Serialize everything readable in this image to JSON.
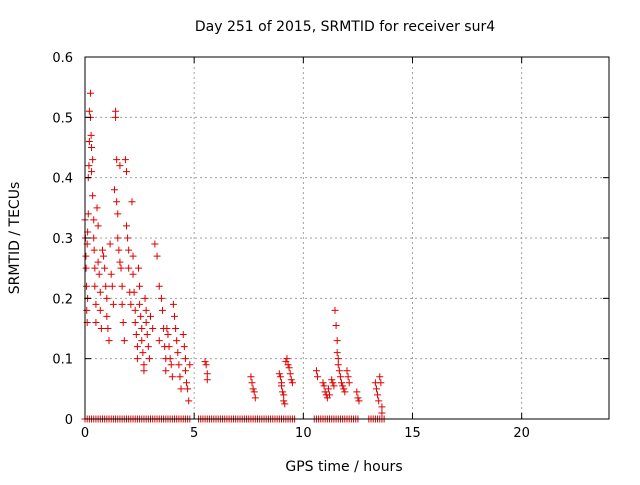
{
  "chart_data": {
    "type": "scatter",
    "title": "Day 251 of 2015, SRMTID for receiver sur4",
    "xlabel": "GPS time / hours",
    "ylabel": "SRMTID / TECUs",
    "xlim": [
      0,
      24
    ],
    "ylim": [
      0,
      0.6
    ],
    "xticks": [
      0,
      5,
      10,
      15,
      20
    ],
    "yticks": [
      0,
      0.1,
      0.2,
      0.3,
      0.4,
      0.5,
      0.6
    ],
    "xtick_labels": [
      "0",
      "5",
      "10",
      "15",
      "20"
    ],
    "ytick_labels": [
      "0",
      "0.1",
      "0.2",
      "0.3",
      "0.4",
      "0.5",
      "0.6"
    ],
    "grid": true,
    "marker": "+",
    "colors": {
      "points": "#e00000",
      "grid": "#a0a0a0",
      "axis": "#000000"
    },
    "series": [
      {
        "name": "SRMTID",
        "points": [
          [
            0.0,
            0.33
          ],
          [
            0.02,
            0.3
          ],
          [
            0.04,
            0.27
          ],
          [
            0.05,
            0.25
          ],
          [
            0.07,
            0.22
          ],
          [
            0.08,
            0.18
          ],
          [
            0.1,
            0.16
          ],
          [
            0.1,
            0.29
          ],
          [
            0.12,
            0.31
          ],
          [
            0.12,
            0.2
          ],
          [
            0.15,
            0.4
          ],
          [
            0.15,
            0.34
          ],
          [
            0.18,
            0.42
          ],
          [
            0.2,
            0.46
          ],
          [
            0.2,
            0.51
          ],
          [
            0.25,
            0.54
          ],
          [
            0.25,
            0.5
          ],
          [
            0.28,
            0.47
          ],
          [
            0.3,
            0.45
          ],
          [
            0.3,
            0.41
          ],
          [
            0.35,
            0.43
          ],
          [
            0.35,
            0.37
          ],
          [
            0.4,
            0.33
          ],
          [
            0.4,
            0.3
          ],
          [
            0.42,
            0.28
          ],
          [
            0.45,
            0.25
          ],
          [
            0.45,
            0.22
          ],
          [
            0.5,
            0.19
          ],
          [
            0.5,
            0.16
          ],
          [
            0.55,
            0.35
          ],
          [
            0.6,
            0.32
          ],
          [
            0.6,
            0.26
          ],
          [
            0.65,
            0.24
          ],
          [
            0.7,
            0.21
          ],
          [
            0.7,
            0.18
          ],
          [
            0.75,
            0.15
          ],
          [
            0.8,
            0.28
          ],
          [
            0.85,
            0.27
          ],
          [
            0.9,
            0.25
          ],
          [
            0.95,
            0.22
          ],
          [
            1.0,
            0.2
          ],
          [
            1.0,
            0.17
          ],
          [
            1.05,
            0.15
          ],
          [
            1.1,
            0.13
          ],
          [
            1.15,
            0.29
          ],
          [
            1.2,
            0.24
          ],
          [
            1.25,
            0.22
          ],
          [
            1.3,
            0.19
          ],
          [
            1.35,
            0.38
          ],
          [
            1.4,
            0.51
          ],
          [
            1.4,
            0.5
          ],
          [
            1.45,
            0.43
          ],
          [
            1.45,
            0.36
          ],
          [
            1.5,
            0.34
          ],
          [
            1.5,
            0.3
          ],
          [
            1.55,
            0.28
          ],
          [
            1.6,
            0.26
          ],
          [
            1.6,
            0.42
          ],
          [
            1.65,
            0.25
          ],
          [
            1.7,
            0.22
          ],
          [
            1.7,
            0.19
          ],
          [
            1.75,
            0.16
          ],
          [
            1.8,
            0.13
          ],
          [
            1.85,
            0.43
          ],
          [
            1.9,
            0.41
          ],
          [
            1.9,
            0.32
          ],
          [
            1.95,
            0.3
          ],
          [
            2.0,
            0.28
          ],
          [
            2.0,
            0.25
          ],
          [
            2.05,
            0.21
          ],
          [
            2.1,
            0.19
          ],
          [
            2.15,
            0.36
          ],
          [
            2.2,
            0.27
          ],
          [
            2.2,
            0.24
          ],
          [
            2.25,
            0.21
          ],
          [
            2.3,
            0.18
          ],
          [
            2.3,
            0.16
          ],
          [
            2.35,
            0.14
          ],
          [
            2.4,
            0.12
          ],
          [
            2.4,
            0.1
          ],
          [
            2.45,
            0.25
          ],
          [
            2.5,
            0.22
          ],
          [
            2.5,
            0.19
          ],
          [
            2.55,
            0.17
          ],
          [
            2.6,
            0.15
          ],
          [
            2.6,
            0.13
          ],
          [
            2.65,
            0.11
          ],
          [
            2.7,
            0.09
          ],
          [
            2.7,
            0.08
          ],
          [
            2.75,
            0.2
          ],
          [
            2.8,
            0.18
          ],
          [
            2.8,
            0.16
          ],
          [
            2.85,
            0.14
          ],
          [
            2.9,
            0.12
          ],
          [
            2.95,
            0.1
          ],
          [
            3.0,
            0.17
          ],
          [
            3.1,
            0.15
          ],
          [
            3.2,
            0.29
          ],
          [
            3.3,
            0.27
          ],
          [
            3.4,
            0.22
          ],
          [
            3.4,
            0.13
          ],
          [
            3.5,
            0.2
          ],
          [
            3.55,
            0.18
          ],
          [
            3.6,
            0.15
          ],
          [
            3.65,
            0.12
          ],
          [
            3.7,
            0.1
          ],
          [
            3.7,
            0.08
          ],
          [
            3.75,
            0.15
          ],
          [
            3.8,
            0.14
          ],
          [
            3.85,
            0.12
          ],
          [
            3.9,
            0.1
          ],
          [
            3.95,
            0.09
          ],
          [
            4.0,
            0.07
          ],
          [
            4.05,
            0.19
          ],
          [
            4.1,
            0.17
          ],
          [
            4.15,
            0.15
          ],
          [
            4.2,
            0.13
          ],
          [
            4.25,
            0.11
          ],
          [
            4.3,
            0.09
          ],
          [
            4.35,
            0.07
          ],
          [
            4.4,
            0.05
          ],
          [
            4.5,
            0.14
          ],
          [
            4.55,
            0.12
          ],
          [
            4.6,
            0.1
          ],
          [
            4.6,
            0.08
          ],
          [
            4.65,
            0.06
          ],
          [
            4.7,
            0.05
          ],
          [
            4.75,
            0.03
          ],
          [
            4.8,
            0.09
          ],
          [
            5.5,
            0.095
          ],
          [
            5.55,
            0.09
          ],
          [
            5.6,
            0.075
          ],
          [
            5.6,
            0.065
          ],
          [
            7.6,
            0.07
          ],
          [
            7.65,
            0.06
          ],
          [
            7.7,
            0.05
          ],
          [
            7.75,
            0.045
          ],
          [
            7.8,
            0.035
          ],
          [
            8.9,
            0.075
          ],
          [
            8.95,
            0.07
          ],
          [
            9.0,
            0.06
          ],
          [
            9.0,
            0.055
          ],
          [
            9.05,
            0.045
          ],
          [
            9.1,
            0.04
          ],
          [
            9.1,
            0.03
          ],
          [
            9.15,
            0.025
          ],
          [
            9.2,
            0.095
          ],
          [
            9.25,
            0.1
          ],
          [
            9.3,
            0.09
          ],
          [
            9.35,
            0.085
          ],
          [
            9.4,
            0.075
          ],
          [
            9.45,
            0.065
          ],
          [
            9.5,
            0.06
          ],
          [
            10.6,
            0.08
          ],
          [
            10.65,
            0.07
          ],
          [
            10.9,
            0.06
          ],
          [
            10.95,
            0.055
          ],
          [
            11.0,
            0.045
          ],
          [
            11.05,
            0.04
          ],
          [
            11.1,
            0.035
          ],
          [
            11.15,
            0.05
          ],
          [
            11.2,
            0.04
          ],
          [
            11.3,
            0.065
          ],
          [
            11.35,
            0.06
          ],
          [
            11.4,
            0.055
          ],
          [
            11.45,
            0.18
          ],
          [
            11.5,
            0.155
          ],
          [
            11.55,
            0.13
          ],
          [
            11.55,
            0.11
          ],
          [
            11.6,
            0.1
          ],
          [
            11.6,
            0.09
          ],
          [
            11.65,
            0.08
          ],
          [
            11.7,
            0.07
          ],
          [
            11.75,
            0.06
          ],
          [
            11.8,
            0.055
          ],
          [
            11.85,
            0.05
          ],
          [
            11.9,
            0.045
          ],
          [
            12.0,
            0.08
          ],
          [
            12.05,
            0.07
          ],
          [
            12.1,
            0.06
          ],
          [
            12.45,
            0.045
          ],
          [
            12.5,
            0.035
          ],
          [
            12.55,
            0.03
          ],
          [
            13.3,
            0.06
          ],
          [
            13.35,
            0.05
          ],
          [
            13.4,
            0.04
          ],
          [
            13.45,
            0.03
          ],
          [
            13.5,
            0.07
          ],
          [
            13.55,
            0.06
          ],
          [
            13.6,
            0.02
          ],
          [
            13.6,
            0.01
          ]
        ]
      },
      {
        "name": "SRMTID (zero values)",
        "x_range_hours": [
          [
            0.0,
            4.8
          ],
          [
            5.2,
            9.6
          ],
          [
            10.5,
            12.5
          ],
          [
            13.0,
            13.7
          ]
        ],
        "x_step_hours": 0.1,
        "value": 0
      }
    ]
  }
}
